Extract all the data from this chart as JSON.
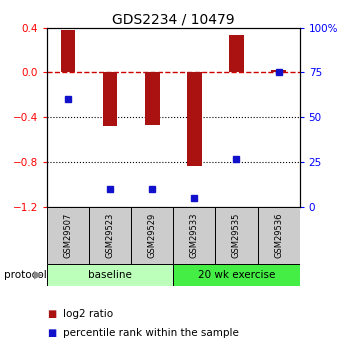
{
  "title": "GDS2234 / 10479",
  "samples": [
    "GSM29507",
    "GSM29523",
    "GSM29529",
    "GSM29533",
    "GSM29535",
    "GSM29536"
  ],
  "log2_ratio": [
    0.38,
    -0.48,
    -0.47,
    -0.83,
    0.33,
    0.02
  ],
  "percentile_rank": [
    60,
    10,
    10,
    5,
    27,
    75
  ],
  "bar_color": "#aa1111",
  "dot_color": "#1111cc",
  "ylim_left": [
    -1.2,
    0.4
  ],
  "ylim_right": [
    0,
    100
  ],
  "yticks_left": [
    -1.2,
    -0.8,
    -0.4,
    0.0,
    0.4
  ],
  "yticks_right": [
    0,
    25,
    50,
    75,
    100
  ],
  "ytick_labels_right": [
    "0",
    "25",
    "50",
    "75",
    "100%"
  ],
  "groups": [
    {
      "label": "baseline",
      "samples": [
        0,
        1,
        2
      ],
      "color": "#bbffbb"
    },
    {
      "label": "20 wk exercise",
      "samples": [
        3,
        4,
        5
      ],
      "color": "#44ee44"
    }
  ],
  "protocol_label": "protocol",
  "legend_items": [
    {
      "label": "log2 ratio",
      "color": "#aa1111"
    },
    {
      "label": "percentile rank within the sample",
      "color": "#1111cc"
    }
  ],
  "hline_color": "#cc0000",
  "dotted_lines": [
    -0.4,
    -0.8
  ],
  "bar_width": 0.35,
  "sample_box_color": "#cccccc",
  "background_color": "#ffffff"
}
